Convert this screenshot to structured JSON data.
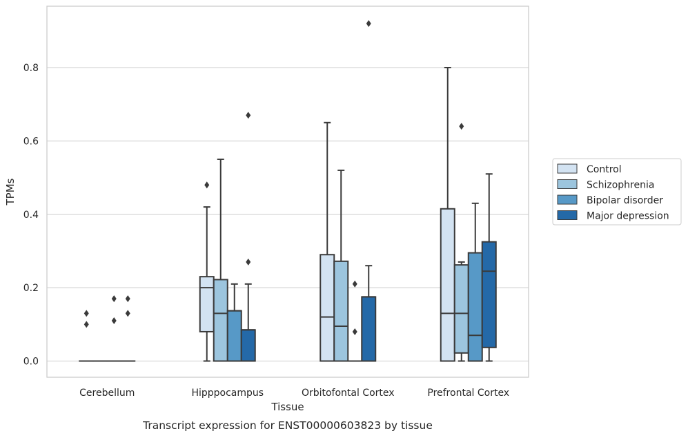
{
  "chart_data": {
    "type": "box",
    "title": "",
    "caption": "Transcript expression for ENST00000603823 by tissue",
    "xlabel": "Tissue",
    "ylabel": "TPMs",
    "ylim": [
      -0.045,
      0.97
    ],
    "yticks": [
      0.0,
      0.2,
      0.4,
      0.6,
      0.8
    ],
    "ytick_labels": [
      "0.0",
      "0.2",
      "0.4",
      "0.6",
      "0.8"
    ],
    "grid": "horizontal",
    "legend_position": "right",
    "categories": [
      "Cerebellum",
      "Hipppocampus",
      "Orbitofontal Cortex",
      "Prefrontal Cortex"
    ],
    "series": [
      {
        "name": "Control",
        "color": "#d3e3f2",
        "boxes": [
          {
            "whislo": 0,
            "q1": 0,
            "med": 0,
            "q3": 0,
            "whishi": 0,
            "fliers": [
              0.1,
              0.13
            ]
          },
          {
            "whislo": 0,
            "q1": 0.08,
            "med": 0.2,
            "q3": 0.23,
            "whishi": 0.42,
            "fliers": [
              0.48
            ]
          },
          {
            "whislo": 0,
            "q1": 0,
            "med": 0.12,
            "q3": 0.29,
            "whishi": 0.65,
            "fliers": []
          },
          {
            "whislo": 0,
            "q1": 0,
            "med": 0.13,
            "q3": 0.415,
            "whishi": 0.8,
            "fliers": []
          }
        ]
      },
      {
        "name": "Schizophrenia",
        "color": "#9cc5de",
        "boxes": [
          {
            "whislo": 0,
            "q1": 0,
            "med": 0,
            "q3": 0,
            "whishi": 0,
            "fliers": []
          },
          {
            "whislo": 0,
            "q1": 0,
            "med": 0.13,
            "q3": 0.222,
            "whishi": 0.55,
            "fliers": []
          },
          {
            "whislo": 0,
            "q1": 0,
            "med": 0.095,
            "q3": 0.272,
            "whishi": 0.52,
            "fliers": []
          },
          {
            "whislo": 0,
            "q1": 0.022,
            "med": 0.13,
            "q3": 0.262,
            "whishi": 0.27,
            "fliers": [
              0.64
            ]
          }
        ]
      },
      {
        "name": "Bipolar disorder",
        "color": "#5799c7",
        "boxes": [
          {
            "whislo": 0,
            "q1": 0,
            "med": 0,
            "q3": 0,
            "whishi": 0,
            "fliers": [
              0.11,
              0.17
            ]
          },
          {
            "whislo": 0,
            "q1": 0,
            "med": 0.137,
            "q3": 0.137,
            "whishi": 0.21,
            "fliers": []
          },
          {
            "whislo": 0,
            "q1": 0,
            "med": 0,
            "q3": 0,
            "whishi": 0,
            "fliers": [
              0.08,
              0.21
            ]
          },
          {
            "whislo": 0,
            "q1": 0,
            "med": 0.07,
            "q3": 0.295,
            "whishi": 0.43,
            "fliers": []
          }
        ]
      },
      {
        "name": "Major depression",
        "color": "#2469a8",
        "boxes": [
          {
            "whislo": 0,
            "q1": 0,
            "med": 0,
            "q3": 0,
            "whishi": 0,
            "fliers": [
              0.13,
              0.17
            ]
          },
          {
            "whislo": 0,
            "q1": 0,
            "med": 0.085,
            "q3": 0.085,
            "whishi": 0.21,
            "fliers": [
              0.27,
              0.67
            ]
          },
          {
            "whislo": 0,
            "q1": 0,
            "med": 0.175,
            "q3": 0.175,
            "whishi": 0.26,
            "fliers": [
              0.92
            ]
          },
          {
            "whislo": 0,
            "q1": 0.037,
            "med": 0.245,
            "q3": 0.325,
            "whishi": 0.51,
            "fliers": []
          }
        ]
      }
    ]
  }
}
